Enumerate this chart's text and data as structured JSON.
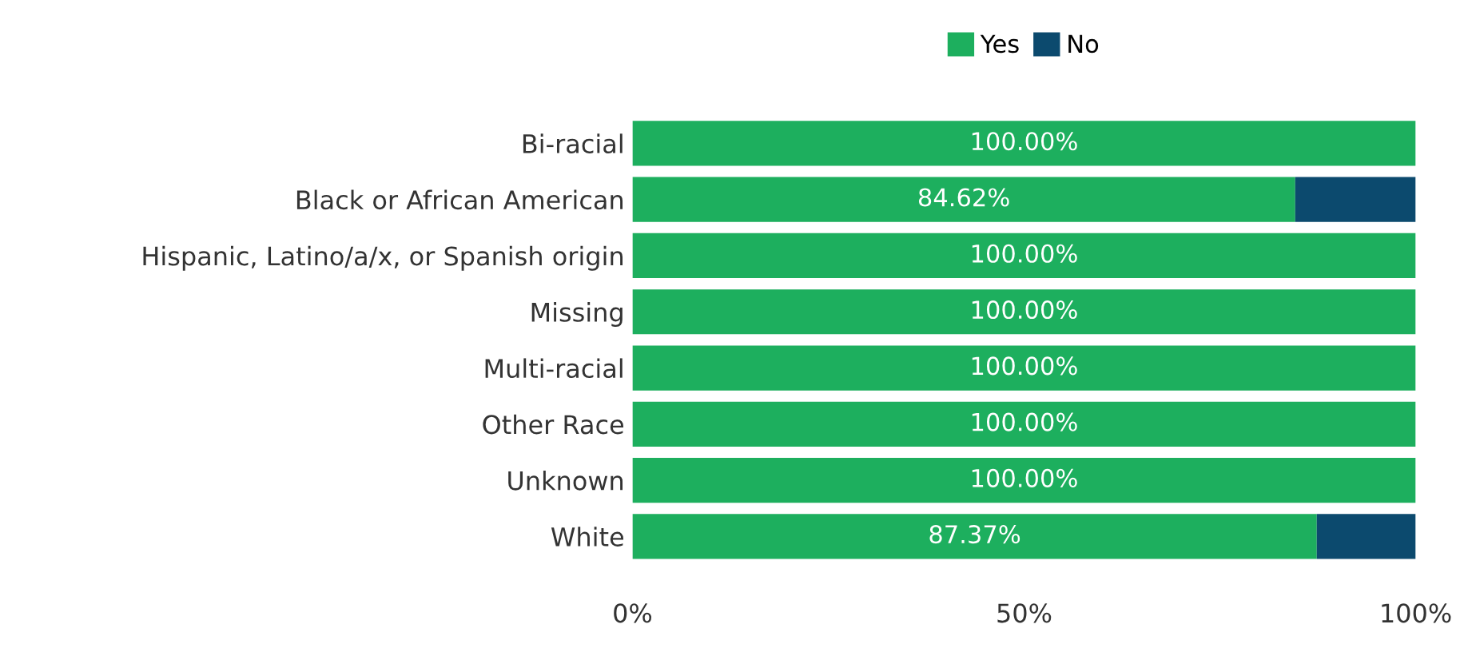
{
  "chart_data": {
    "type": "bar",
    "orientation": "horizontal",
    "stacked": true,
    "categories": [
      "Bi-racial",
      "Black or African American",
      "Hispanic, Latino/a/x, or Spanish origin",
      "Missing",
      "Multi-racial",
      "Other Race",
      "Unknown",
      "White"
    ],
    "series": [
      {
        "name": "Yes",
        "color": "#1daf5e",
        "values": [
          100,
          84.62,
          100,
          100,
          100,
          100,
          100,
          87.37
        ],
        "value_labels": [
          "100.00%",
          "84.62%",
          "100.00%",
          "100.00%",
          "100.00%",
          "100.00%",
          "100.00%",
          "87.37%"
        ]
      },
      {
        "name": "No",
        "color": "#0c4a6e",
        "values": [
          null,
          15.38,
          null,
          null,
          null,
          null,
          null,
          12.63
        ]
      }
    ],
    "xlim": [
      0,
      100
    ],
    "xticks": [
      {
        "value": 0,
        "label": "0%"
      },
      {
        "value": 50,
        "label": "50%"
      },
      {
        "value": 100,
        "label": "100%"
      }
    ],
    "legend": "top",
    "grid": false
  }
}
